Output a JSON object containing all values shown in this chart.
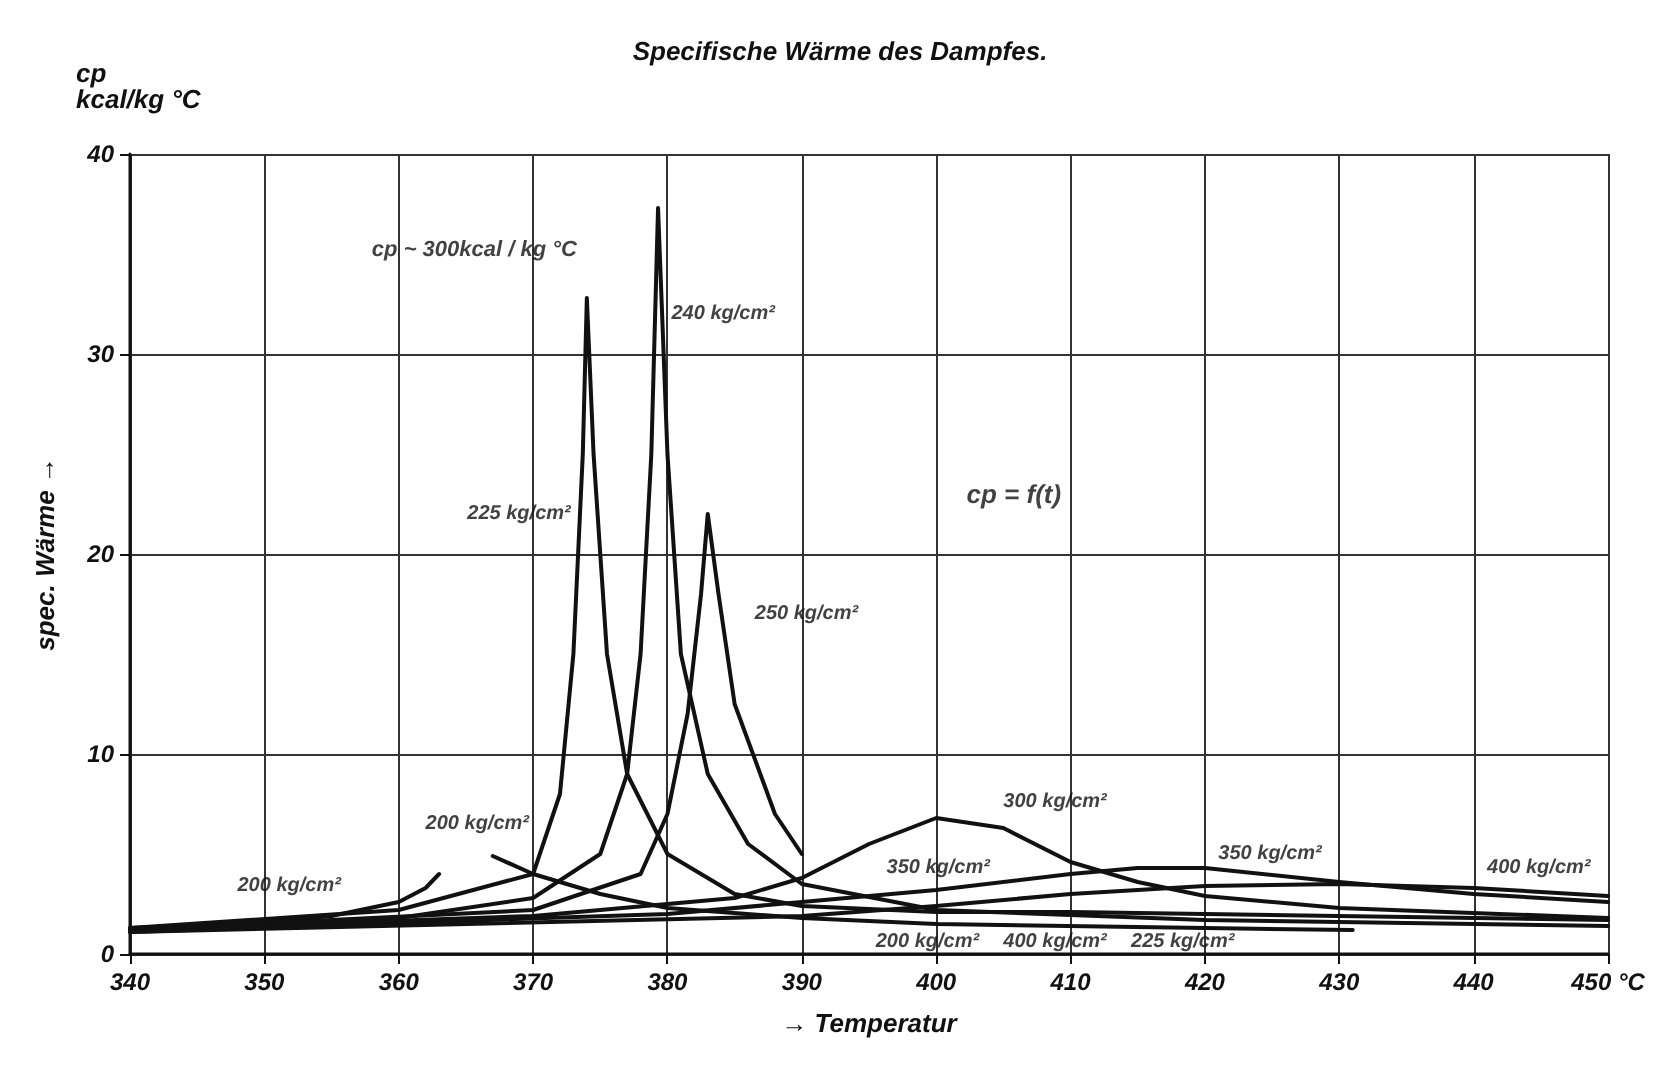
{
  "chart_data": {
    "type": "line",
    "title": "Specifische Wärme des Dampfes.",
    "xlabel": "→ Temperatur",
    "ylabel": "spec. Wärme →",
    "xlim": [
      340,
      450
    ],
    "xticks": [
      340,
      350,
      360,
      370,
      380,
      390,
      400,
      410,
      420,
      430,
      440,
      {
        "value": 450,
        "label": "450 °C"
      }
    ],
    "ylim": [
      0,
      40
    ],
    "yticks": [
      0,
      10,
      20,
      30,
      40
    ],
    "grid": true,
    "marker": "none",
    "line_style": "solid",
    "series": [
      {
        "color": "#111111",
        "x": [
          340,
          350,
          355,
          360,
          362,
          363
        ],
        "values": [
          1.3,
          1.6,
          1.9,
          2.6,
          3.3,
          4.0
        ]
      },
      {
        "color": "#111111",
        "x": [
          367,
          370,
          375,
          380,
          390,
          400,
          420,
          431
        ],
        "values": [
          4.9,
          4.0,
          3.0,
          2.3,
          1.8,
          1.5,
          1.3,
          1.2
        ]
      },
      {
        "color": "#111111",
        "x": [
          340,
          360,
          370,
          372,
          373,
          373.7,
          374,
          374.5,
          375.5,
          377,
          380,
          385,
          390,
          400,
          410,
          420,
          450
        ],
        "values": [
          1.3,
          2.2,
          4,
          8,
          15,
          25,
          32.8,
          25,
          15,
          9,
          5,
          3,
          2.4,
          2.1,
          2.1,
          2.0,
          1.7
        ]
      },
      {
        "color": "#111111",
        "x": [
          340,
          360,
          370,
          375,
          377,
          378,
          378.8,
          379.3,
          380,
          381,
          383,
          386,
          390,
          400,
          420,
          450
        ],
        "values": [
          1.2,
          1.8,
          2.8,
          5,
          9,
          15,
          25,
          37.3,
          25,
          15,
          9,
          5.5,
          3.5,
          2.2,
          1.7,
          1.4
        ]
      },
      {
        "color": "#111111",
        "x": [
          340,
          370,
          378,
          380,
          381.5,
          382.5,
          383,
          383.8,
          385,
          388,
          390
        ],
        "values": [
          1.2,
          2.2,
          4,
          7,
          12,
          18,
          22,
          18,
          12.5,
          7,
          5.0
        ]
      },
      {
        "color": "#111111",
        "x": [
          340,
          370,
          385,
          390,
          395,
          400,
          405,
          410,
          415,
          420,
          430,
          450
        ],
        "values": [
          1.2,
          1.9,
          2.8,
          3.8,
          5.5,
          6.8,
          6.3,
          4.6,
          3.6,
          2.9,
          2.3,
          1.8
        ]
      },
      {
        "color": "#111111",
        "x": [
          340,
          380,
          390,
          400,
          410,
          415,
          420,
          430,
          440,
          450
        ],
        "values": [
          1.1,
          2.0,
          2.6,
          3.2,
          4.0,
          4.3,
          4.3,
          3.6,
          3.0,
          2.6
        ]
      },
      {
        "color": "#111111",
        "x": [
          340,
          390,
          400,
          410,
          420,
          430,
          440,
          450
        ],
        "values": [
          1.1,
          1.9,
          2.4,
          3.0,
          3.4,
          3.5,
          3.3,
          2.9
        ]
      }
    ],
    "annotations": [
      "cp\nkcal/kg °C",
      "cp ~ 300kcal / kg °C",
      "cp = f(t)",
      "200 kg/cm²",
      "200 kg/cm²",
      "225 kg/cm²",
      "240 kg/cm²",
      "250 kg/cm²",
      "300 kg/cm²",
      "350 kg/cm²",
      "400 kg/cm²",
      "200 kg/cm²",
      "225 kg/cm²",
      "350 kg/cm²",
      "400 kg/cm²"
    ]
  }
}
